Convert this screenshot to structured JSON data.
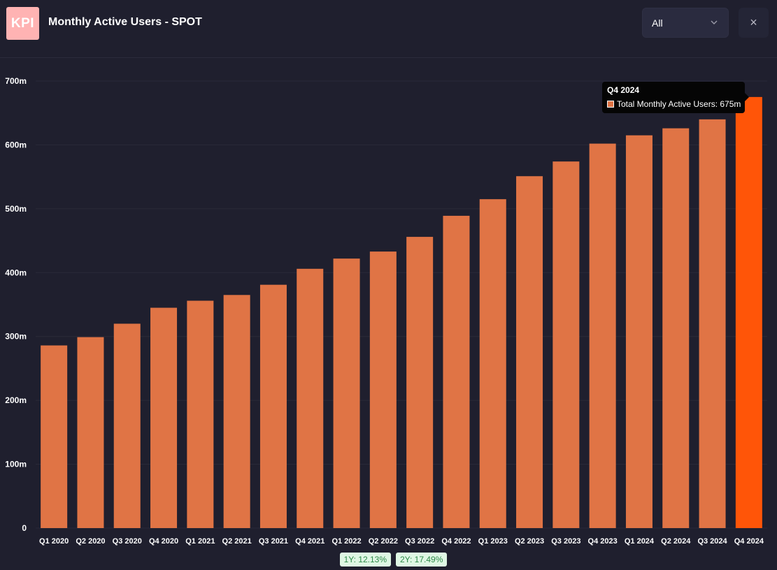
{
  "header": {
    "logo_text": "KPI",
    "title": "Monthly Active Users - SPOT",
    "filter_value": "All",
    "close_symbol": "×"
  },
  "chart_data": {
    "type": "bar",
    "categories": [
      "Q1 2020",
      "Q2 2020",
      "Q3 2020",
      "Q4 2020",
      "Q1 2021",
      "Q2 2021",
      "Q3 2021",
      "Q4 2021",
      "Q1 2022",
      "Q2 2022",
      "Q3 2022",
      "Q4 2022",
      "Q1 2023",
      "Q2 2023",
      "Q3 2023",
      "Q4 2023",
      "Q1 2024",
      "Q2 2024",
      "Q3 2024",
      "Q4 2024"
    ],
    "series": [
      {
        "name": "Total Monthly Active Users",
        "values": [
          286,
          299,
          320,
          345,
          356,
          365,
          381,
          406,
          422,
          433,
          456,
          489,
          515,
          551,
          574,
          602,
          615,
          626,
          640,
          675
        ]
      }
    ],
    "ylim": [
      0,
      700
    ],
    "yticks": [
      0,
      100,
      200,
      300,
      400,
      500,
      600,
      700
    ],
    "ytick_labels": [
      "0",
      "100m",
      "200m",
      "300m",
      "400m",
      "500m",
      "600m",
      "700m"
    ],
    "title": "",
    "xlabel": "",
    "ylabel": "",
    "highlighted_index": 19,
    "colors": {
      "bar": "#e07445",
      "highlight": "#ff5508",
      "grid": "#2a2a39"
    }
  },
  "tooltip": {
    "title": "Q4 2024",
    "label": "Total Monthly Active Users: 675m"
  },
  "badges": [
    {
      "text": "1Y: 12.13%"
    },
    {
      "text": "2Y: 17.49%"
    }
  ]
}
